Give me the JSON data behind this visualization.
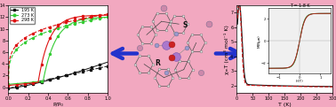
{
  "background_color": "#f2a8c0",
  "left_plot": {
    "xlabel": "P/P₀",
    "ylabel": "V(cm³ g⁻¹)",
    "ylim": [
      -1,
      14
    ],
    "xlim": [
      0.0,
      1.0
    ],
    "xticks": [
      0.0,
      0.2,
      0.4,
      0.6,
      0.8,
      1.0
    ],
    "yticks": [
      0,
      2,
      4,
      6,
      8,
      10,
      12,
      14
    ],
    "legend": [
      "195 K",
      "273 K",
      "298 K"
    ],
    "legend_colors": [
      "#111111",
      "#33cc33",
      "#dd1111"
    ],
    "bg_color": "#ffffff"
  },
  "right_plot": {
    "xlabel": "T (K)",
    "ylabel": "χₘT (cm³ mol⁻¹ K)",
    "xlim": [
      0,
      300
    ],
    "ylim": [
      1.5,
      7.5
    ],
    "yticks": [
      2,
      3,
      4,
      5,
      6,
      7
    ],
    "xticks": [
      0,
      50,
      100,
      150,
      200,
      250,
      300
    ],
    "line_colors": [
      "#111111",
      "#cc1111"
    ],
    "bg_color": "#ffffff",
    "inset": {
      "xlabel": "H(T)",
      "ylabel": "M(Nμв)",
      "title": "T = 1.8 K",
      "xlim": [
        -1.5,
        1.5
      ],
      "ylim": [
        -3,
        3
      ],
      "line_colors": [
        "#111111",
        "#44aa44",
        "#cc1111"
      ]
    }
  },
  "arrow_color": "#2233cc",
  "arrow_lw": 8
}
